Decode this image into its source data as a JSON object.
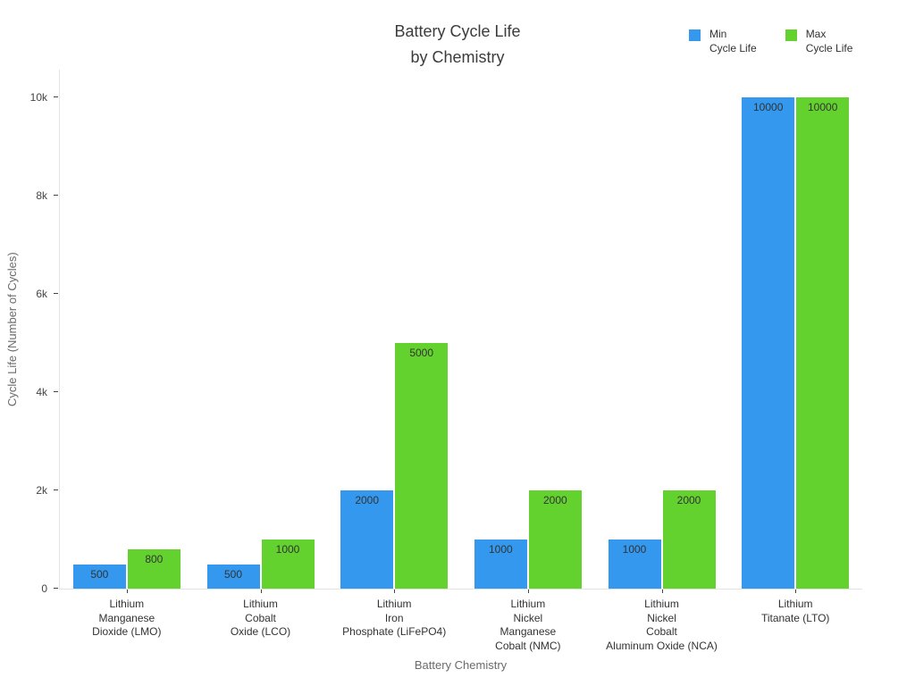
{
  "title": "Battery Cycle Life\nby Chemistry",
  "legend": {
    "items": [
      {
        "label": "Min\nCycle Life",
        "color": "#3398ee"
      },
      {
        "label": "Max\nCycle Life",
        "color": "#63d22e"
      }
    ]
  },
  "chart_data": {
    "type": "bar",
    "title": "Battery Cycle Life by Chemistry",
    "xlabel": "Battery Chemistry",
    "ylabel": "Cycle Life (Number of Cycles)",
    "categories": [
      "Lithium\nManganese\nDioxide (LMO)",
      "Lithium\nCobalt\nOxide (LCO)",
      "Lithium\nIron\nPhosphate (LiFePO4)",
      "Lithium\nNickel\nManganese\nCobalt (NMC)",
      "Lithium\nNickel\nCobalt\nAluminum Oxide (NCA)",
      "Lithium\nTitanate (LTO)"
    ],
    "series": [
      {
        "name": "Min Cycle Life",
        "color": "#3398ee",
        "values": [
          500,
          500,
          2000,
          1000,
          1000,
          10000
        ]
      },
      {
        "name": "Max Cycle Life",
        "color": "#63d22e",
        "values": [
          800,
          1000,
          5000,
          2000,
          2000,
          10000
        ]
      }
    ],
    "bar_value_labels": [
      "500",
      "800",
      "500",
      "1000",
      "2000",
      "5000",
      "1000",
      "2000",
      "1000",
      "2000",
      "10000",
      "10000"
    ],
    "ylim": [
      0,
      10000
    ],
    "yticks": [
      {
        "value": 0,
        "label": "0"
      },
      {
        "value": 2000,
        "label": "2k"
      },
      {
        "value": 4000,
        "label": "4k"
      },
      {
        "value": 6000,
        "label": "6k"
      },
      {
        "value": 8000,
        "label": "8k"
      },
      {
        "value": 10000,
        "label": "10k"
      }
    ],
    "grid": false,
    "legend_position": "top-right",
    "value_label_position": "inside-top"
  }
}
